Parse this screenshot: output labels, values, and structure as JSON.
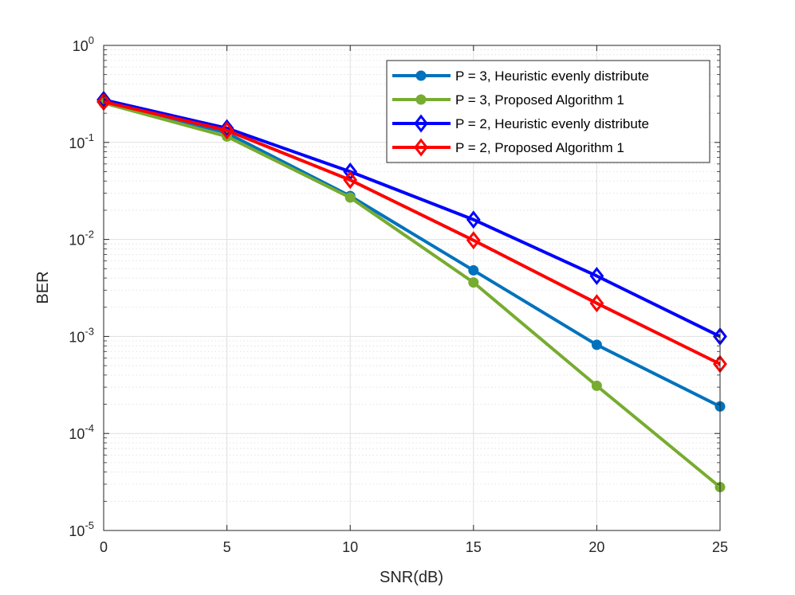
{
  "chart_data": {
    "type": "line",
    "y_scale": "log",
    "xlabel": "SNR(dB)",
    "ylabel": "BER",
    "xlim": [
      0,
      25
    ],
    "ylim_exponents": [
      -5,
      0
    ],
    "x_ticks": [
      "0",
      "5",
      "10",
      "15",
      "20",
      "25"
    ],
    "y_tick_base": "10",
    "y_tick_exponents": [
      "-5",
      "-4",
      "-3",
      "-2",
      "-1",
      "0"
    ],
    "grid": "major and minor",
    "legend_position": "top-right",
    "x": [
      0,
      5,
      10,
      15,
      20,
      25
    ],
    "series": [
      {
        "name": "P = 3, Heuristic evenly distribute",
        "color": "#0072BD",
        "marker": "circle",
        "values": [
          0.27,
          0.125,
          0.028,
          0.0048,
          0.00082,
          0.00019
        ]
      },
      {
        "name": "P = 3, Proposed Algorithm 1",
        "color": "#77AC30",
        "marker": "circle",
        "values": [
          0.255,
          0.115,
          0.027,
          0.0036,
          0.00031,
          2.8e-05
        ]
      },
      {
        "name": "P = 2, Heuristic evenly distribute",
        "color": "#0000FF",
        "marker": "diamond",
        "values": [
          0.275,
          0.14,
          0.05,
          0.016,
          0.0042,
          0.001
        ]
      },
      {
        "name": "P = 2, Proposed Algorithm 1",
        "color": "#FF0000",
        "marker": "diamond",
        "values": [
          0.262,
          0.133,
          0.041,
          0.0098,
          0.0022,
          0.00052
        ]
      }
    ]
  }
}
